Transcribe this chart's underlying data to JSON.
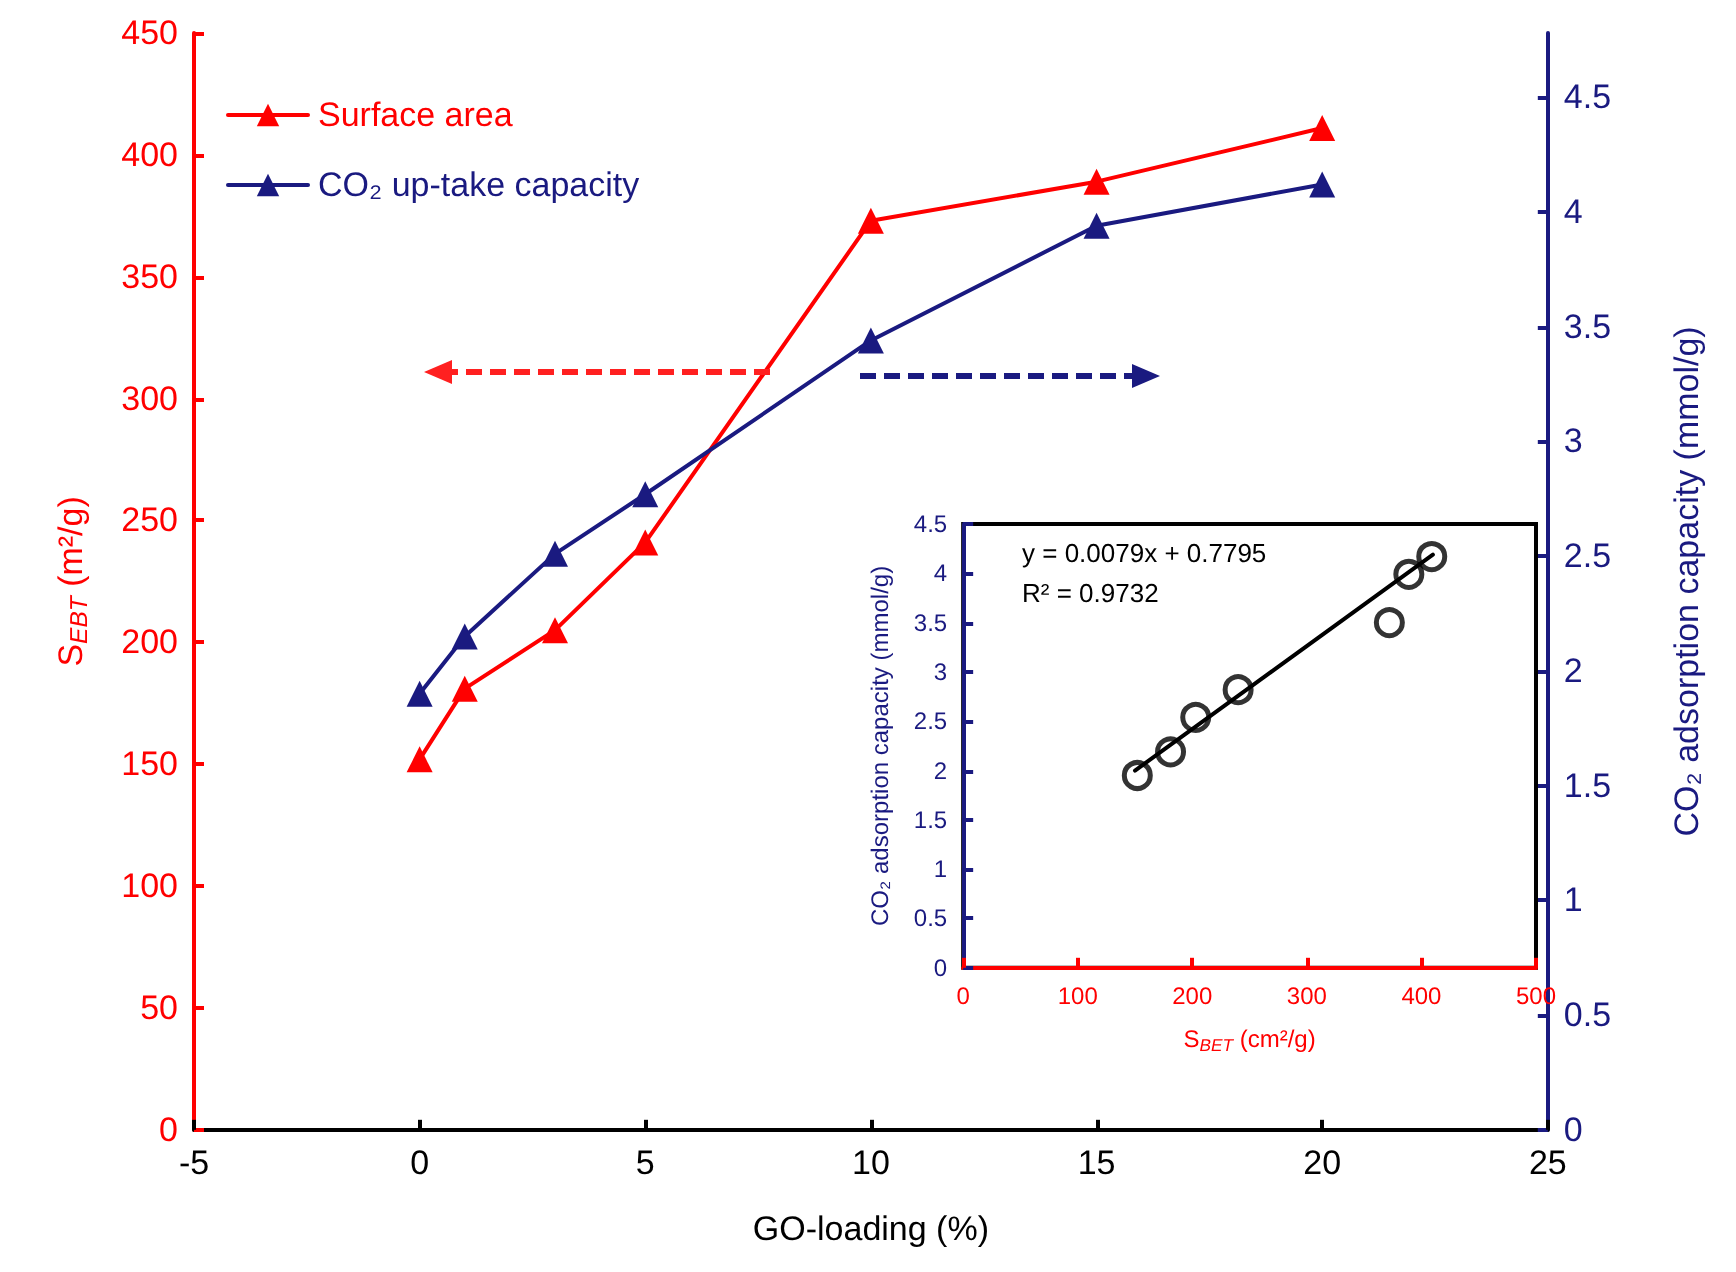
{
  "chart_data": [
    {
      "type": "line",
      "xlabel": "GO-loading (%)",
      "ylabel": "S$_{EBT}$ (m²/g)",
      "y2label": "CO₂ adsorption capacity (mmol/g)",
      "x": [
        0,
        1,
        3,
        5,
        10,
        15,
        20
      ],
      "series": [
        {
          "name": "Surface area",
          "color": "#ff0000",
          "values": [
            152,
            181,
            205,
            241,
            373,
            389,
            411
          ]
        },
        {
          "name": "CO₂ up-take capacity",
          "color": "#1a1a80",
          "axis": "y2",
          "values": [
            1.9,
            2.15,
            2.51,
            2.77,
            3.44,
            3.94,
            4.12
          ]
        }
      ],
      "xlim": [
        -5,
        25
      ],
      "xticks": [
        -5,
        0,
        5,
        10,
        15,
        20,
        25
      ],
      "ylim": [
        0,
        450
      ],
      "yticks": [
        0,
        50,
        100,
        150,
        200,
        250,
        300,
        350,
        400,
        450
      ],
      "y2lim": [
        0,
        4.78
      ],
      "y2ticks": [
        0,
        0.5,
        1,
        1.5,
        2,
        2.5,
        3,
        3.5,
        4,
        4.5
      ],
      "marker": "triangle",
      "legend": "top left",
      "grid": false
    },
    {
      "type": "scatter",
      "xlabel": "S$_{BET}$ (cm²/g)",
      "ylabel": "CO₂ adsorption capacity (mmol/g)",
      "annotations": [
        "y = 0.0079x + 0.7795",
        "R² = 0.9732"
      ],
      "series": [
        {
          "color": "#000000",
          "x": [
            152,
            181,
            203,
            240,
            372,
            389,
            409
          ],
          "values": [
            1.95,
            2.19,
            2.54,
            2.82,
            3.5,
            3.99,
            4.17
          ]
        },
        {
          "type": "line",
          "color": "#000000",
          "marker": "none",
          "x": [
            150,
            410
          ],
          "values": [
            2.0,
            4.19
          ]
        }
      ],
      "xlim": [
        0,
        500
      ],
      "xticks": [
        0,
        100,
        200,
        300,
        400,
        500
      ],
      "ylim": [
        0,
        4.5
      ],
      "yticks": [
        0,
        0.5,
        1,
        1.5,
        2,
        2.5,
        3,
        3.5,
        4,
        4.5
      ],
      "marker": "circle",
      "legend": false,
      "grid": false
    }
  ]
}
